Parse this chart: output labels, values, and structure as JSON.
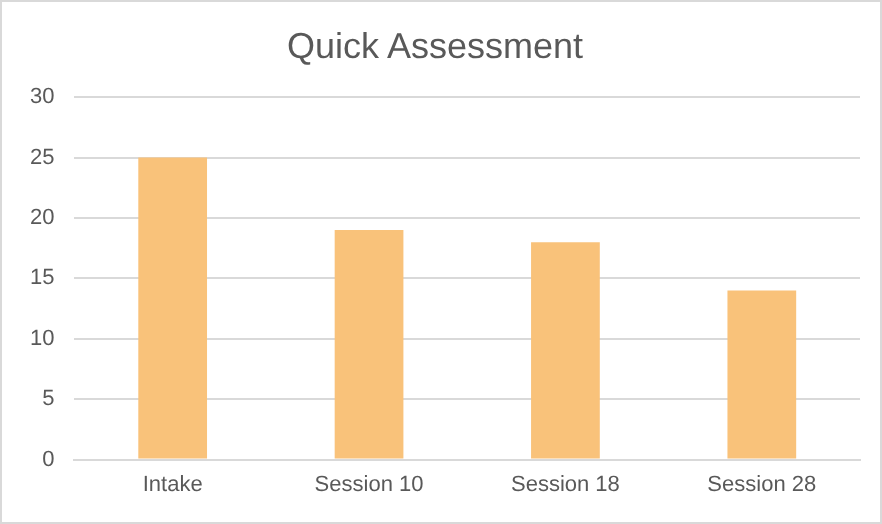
{
  "chart_data": {
    "type": "bar",
    "title": "Quick Assessment",
    "categories": [
      "Intake",
      "Session 10",
      "Session 18",
      "Session 28"
    ],
    "values": [
      25,
      19,
      18,
      14
    ],
    "color": "#f9c27a",
    "ylim": [
      0,
      30
    ],
    "yticks": [
      0,
      5,
      10,
      15,
      20,
      25,
      30
    ],
    "grid": "y"
  }
}
